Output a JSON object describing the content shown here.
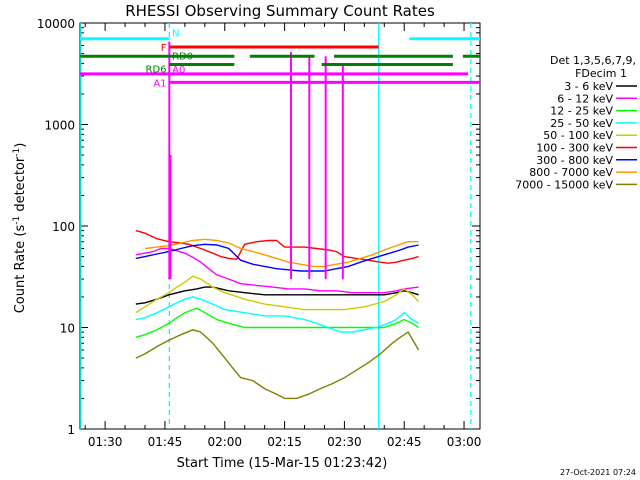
{
  "chart_data": {
    "type": "line",
    "title": "RHESSI Observing Summary Count Rates",
    "xlabel": "Start Time (15-Mar-15 01:23:42)",
    "ylabel_main": "Count Rate (s",
    "ylabel_sup1": "-1",
    "ylabel_mid": " detector",
    "ylabel_sup2": "-1",
    "ylabel_end": ")",
    "yscale": "log",
    "ylim": [
      1,
      10000
    ],
    "xlim_minutes": [
      83.7,
      184
    ],
    "x_tick_labels": [
      {
        "label": "01:30",
        "minute": 90
      },
      {
        "label": "01:45",
        "minute": 105
      },
      {
        "label": "02:00",
        "minute": 120
      },
      {
        "label": "02:15",
        "minute": 135
      },
      {
        "label": "02:30",
        "minute": 150
      },
      {
        "label": "02:45",
        "minute": 165
      },
      {
        "label": "03:00",
        "minute": 180
      }
    ],
    "y_tick_labels": [
      {
        "label": "1",
        "value": 1
      },
      {
        "label": "10",
        "value": 10
      },
      {
        "label": "100",
        "value": 100
      },
      {
        "label": "1000",
        "value": 1000
      },
      {
        "label": "10000",
        "value": 10000
      }
    ],
    "legend_title_1": "Det 1,3,5,6,7,9,",
    "legend_title_2": "FDecim 1",
    "legend_placement": "right",
    "series": [
      {
        "name": "3 - 6 keV",
        "color": "#000000",
        "points": [
          [
            97.7,
            17
          ],
          [
            100,
            17.5
          ],
          [
            103,
            19
          ],
          [
            106,
            21
          ],
          [
            110,
            23
          ],
          [
            113,
            24
          ],
          [
            115,
            25
          ],
          [
            117,
            25
          ],
          [
            119,
            24
          ],
          [
            121,
            23
          ],
          [
            125,
            22
          ],
          [
            130,
            21
          ],
          [
            135,
            21
          ],
          [
            140,
            21
          ],
          [
            145,
            21
          ],
          [
            150,
            21
          ],
          [
            155,
            21
          ],
          [
            160,
            21
          ],
          [
            163,
            22
          ],
          [
            165,
            23
          ],
          [
            167,
            22
          ],
          [
            168.6,
            21
          ]
        ]
      },
      {
        "name": "6 - 12 keV",
        "color": "#ff00ff",
        "points": [
          [
            97.7,
            52
          ],
          [
            100,
            54
          ],
          [
            102,
            56
          ],
          [
            104,
            60
          ],
          [
            106,
            60
          ],
          [
            108,
            57
          ],
          [
            110,
            54
          ],
          [
            112,
            49
          ],
          [
            114,
            44
          ],
          [
            116,
            38
          ],
          [
            118,
            33
          ],
          [
            120,
            31
          ],
          [
            121,
            30
          ],
          [
            124,
            27
          ],
          [
            128,
            26
          ],
          [
            132,
            25
          ],
          [
            136,
            24
          ],
          [
            140,
            24
          ],
          [
            144,
            23
          ],
          [
            148,
            23
          ],
          [
            152,
            22
          ],
          [
            156,
            22
          ],
          [
            160,
            22
          ],
          [
            163,
            23
          ],
          [
            165,
            24
          ],
          [
            168.6,
            25
          ]
        ]
      },
      {
        "name": "12 - 25 keV",
        "color": "#00ff00",
        "points": [
          [
            97.7,
            8
          ],
          [
            100,
            8.5
          ],
          [
            103,
            9.5
          ],
          [
            106,
            11
          ],
          [
            108,
            12.5
          ],
          [
            110,
            14
          ],
          [
            112,
            15
          ],
          [
            113,
            15.5
          ],
          [
            115,
            14
          ],
          [
            118,
            12
          ],
          [
            121,
            11
          ],
          [
            125,
            10
          ],
          [
            130,
            10
          ],
          [
            135,
            10
          ],
          [
            140,
            10
          ],
          [
            145,
            10
          ],
          [
            150,
            10
          ],
          [
            155,
            10
          ],
          [
            160,
            10
          ],
          [
            163,
            11
          ],
          [
            165,
            12
          ],
          [
            167,
            11
          ],
          [
            168.6,
            10
          ]
        ]
      },
      {
        "name": "25 - 50 keV",
        "color": "#00ffff",
        "points": [
          [
            97.7,
            12
          ],
          [
            100,
            12.5
          ],
          [
            103,
            14
          ],
          [
            106,
            16
          ],
          [
            108,
            17.5
          ],
          [
            110,
            19
          ],
          [
            112,
            20
          ],
          [
            114,
            19
          ],
          [
            117,
            17
          ],
          [
            120,
            15
          ],
          [
            125,
            14
          ],
          [
            130,
            13
          ],
          [
            135,
            13
          ],
          [
            140,
            12
          ],
          [
            143,
            11
          ],
          [
            146,
            10
          ],
          [
            149,
            9
          ],
          [
            152,
            9
          ],
          [
            155,
            9.5
          ],
          [
            158,
            10
          ],
          [
            161,
            11
          ],
          [
            163,
            12
          ],
          [
            165,
            14
          ],
          [
            167,
            12
          ],
          [
            168.6,
            11
          ]
        ]
      },
      {
        "name": "50 - 100 keV",
        "color": "#cccc00",
        "points": [
          [
            97.7,
            14
          ],
          [
            100,
            16
          ],
          [
            103,
            19
          ],
          [
            106,
            22
          ],
          [
            108,
            25
          ],
          [
            110,
            28
          ],
          [
            112,
            32
          ],
          [
            114,
            30
          ],
          [
            117,
            25
          ],
          [
            120,
            22
          ],
          [
            125,
            19
          ],
          [
            130,
            17
          ],
          [
            135,
            16
          ],
          [
            140,
            15
          ],
          [
            145,
            15
          ],
          [
            150,
            15
          ],
          [
            155,
            16
          ],
          [
            160,
            18
          ],
          [
            163,
            21
          ],
          [
            165,
            24
          ],
          [
            167,
            21
          ],
          [
            168.6,
            18
          ]
        ]
      },
      {
        "name": "100 - 300 keV",
        "color": "#ff0000",
        "points": [
          [
            97.7,
            90
          ],
          [
            100,
            85
          ],
          [
            103,
            75
          ],
          [
            106,
            70
          ],
          [
            109,
            68
          ],
          [
            111,
            66
          ],
          [
            113,
            62
          ],
          [
            115,
            58
          ],
          [
            117,
            54
          ],
          [
            119,
            50
          ],
          [
            121,
            48
          ],
          [
            123,
            47
          ],
          [
            125,
            66
          ],
          [
            128,
            70
          ],
          [
            131,
            72
          ],
          [
            133,
            72
          ],
          [
            135,
            62
          ],
          [
            137,
            62
          ],
          [
            140,
            62
          ],
          [
            143,
            60
          ],
          [
            146,
            58
          ],
          [
            148,
            56
          ],
          [
            150,
            50
          ],
          [
            153,
            48
          ],
          [
            156,
            46
          ],
          [
            159,
            44
          ],
          [
            161,
            43
          ],
          [
            163,
            44
          ],
          [
            165,
            46
          ],
          [
            167,
            48
          ],
          [
            168.6,
            50
          ]
        ]
      },
      {
        "name": "300 - 800 keV",
        "color": "#0000ff",
        "points": [
          [
            97.7,
            48
          ],
          [
            100,
            50
          ],
          [
            103,
            53
          ],
          [
            106,
            56
          ],
          [
            109,
            60
          ],
          [
            112,
            64
          ],
          [
            115,
            66
          ],
          [
            118,
            65
          ],
          [
            121,
            60
          ],
          [
            124,
            46
          ],
          [
            127,
            42
          ],
          [
            130,
            40
          ],
          [
            133,
            38
          ],
          [
            136,
            37
          ],
          [
            139,
            36
          ],
          [
            142,
            36
          ],
          [
            145,
            36
          ],
          [
            148,
            38
          ],
          [
            151,
            40
          ],
          [
            154,
            44
          ],
          [
            157,
            48
          ],
          [
            160,
            52
          ],
          [
            162,
            55
          ],
          [
            164,
            58
          ],
          [
            166,
            62
          ],
          [
            168.6,
            65
          ]
        ]
      },
      {
        "name": "800 - 7000 keV",
        "color": "#ff9900",
        "points": [
          [
            100,
            60
          ],
          [
            103,
            62
          ],
          [
            106,
            64
          ],
          [
            109,
            68
          ],
          [
            112,
            72
          ],
          [
            115,
            74
          ],
          [
            118,
            72
          ],
          [
            121,
            68
          ],
          [
            124,
            60
          ],
          [
            127,
            56
          ],
          [
            130,
            52
          ],
          [
            133,
            48
          ],
          [
            136,
            44
          ],
          [
            139,
            42
          ],
          [
            142,
            40
          ],
          [
            145,
            40
          ],
          [
            148,
            42
          ],
          [
            151,
            44
          ],
          [
            154,
            48
          ],
          [
            157,
            52
          ],
          [
            160,
            58
          ],
          [
            162,
            62
          ],
          [
            164,
            66
          ],
          [
            166,
            70
          ],
          [
            168.6,
            70
          ]
        ]
      },
      {
        "name": "7000 - 15000 keV",
        "color": "#808000",
        "points": [
          [
            97.7,
            5
          ],
          [
            100,
            5.5
          ],
          [
            103,
            6.5
          ],
          [
            106,
            7.5
          ],
          [
            109,
            8.5
          ],
          [
            112,
            9.5
          ],
          [
            114,
            9
          ],
          [
            117,
            7
          ],
          [
            120,
            5
          ],
          [
            122,
            4
          ],
          [
            124,
            3.2
          ],
          [
            127,
            3
          ],
          [
            130,
            2.5
          ],
          [
            133,
            2.2
          ],
          [
            135,
            2
          ],
          [
            138,
            2
          ],
          [
            141,
            2.2
          ],
          [
            144,
            2.5
          ],
          [
            147,
            2.8
          ],
          [
            150,
            3.2
          ],
          [
            153,
            3.8
          ],
          [
            156,
            4.5
          ],
          [
            159,
            5.5
          ],
          [
            162,
            7
          ],
          [
            164,
            8
          ],
          [
            166,
            9
          ],
          [
            168.6,
            6
          ]
        ]
      }
    ],
    "spikes": [
      {
        "minute": 106.1,
        "value": 6500,
        "color": "#ff00ff"
      },
      {
        "minute": 106.4,
        "value": 500,
        "color": "#ff00ff"
      },
      {
        "minute": 136.6,
        "value": 5200,
        "color": "#ff00ff"
      },
      {
        "minute": 141.2,
        "value": 4700,
        "color": "#ff00ff"
      },
      {
        "minute": 145.3,
        "value": 4700,
        "color": "#ff00ff"
      },
      {
        "minute": 149.6,
        "value": 4000,
        "color": "#ff00ff"
      }
    ],
    "observing_flags": [
      {
        "label": "N",
        "color": "#00ffff",
        "value": 7000,
        "ranges": [
          [
            83.7,
            106.1
          ],
          [
            166.3,
            184
          ]
        ]
      },
      {
        "label": "F",
        "color": "#ff0000",
        "value": 5800,
        "ranges": [
          [
            106.1,
            158.6
          ]
        ]
      },
      {
        "label": "RD0",
        "color": "#008000",
        "value": 4700,
        "ranges": [
          [
            83.7,
            106.1
          ],
          [
            106.1,
            122.4
          ],
          [
            126.3,
            142.5
          ],
          [
            147.4,
            177.2
          ],
          [
            179.7,
            184
          ]
        ]
      },
      {
        "label": "RD6",
        "color": "#008000",
        "value": 3900,
        "ranges": [
          [
            106.1,
            122.4
          ],
          [
            144.3,
            177.2
          ]
        ]
      },
      {
        "label": "A0",
        "color": "#ff00ff",
        "value": 3150,
        "ranges": [
          [
            83.7,
            106.1
          ],
          [
            106.1,
            181
          ]
        ]
      },
      {
        "label": "A1",
        "color": "#ff00ff",
        "value": 2600,
        "ranges": [
          [
            106.1,
            184
          ]
        ]
      }
    ],
    "verticals": [
      {
        "minute": 83.9,
        "color": "#00ffff",
        "dashed": false
      },
      {
        "minute": 106.1,
        "color": "#00ffff",
        "dashed": true
      },
      {
        "minute": 158.6,
        "color": "#00ffff",
        "dashed": false
      },
      {
        "minute": 181.7,
        "color": "#00ffff",
        "dashed": true
      }
    ]
  },
  "footer": {
    "timestamp": "27-Oct-2021 07:24"
  }
}
